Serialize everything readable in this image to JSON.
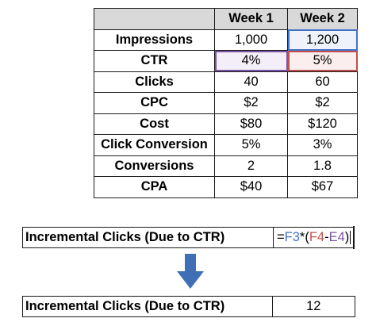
{
  "table": {
    "headers": [
      "",
      "Week 1",
      "Week 2"
    ],
    "rows": [
      {
        "label": "Impressions",
        "week1": "1,000",
        "week2": "1,200"
      },
      {
        "label": "CTR",
        "week1": "4%",
        "week2": "5%"
      },
      {
        "label": "Clicks",
        "week1": "40",
        "week2": "60"
      },
      {
        "label": "CPC",
        "week1": "$2",
        "week2": "$2"
      },
      {
        "label": "Cost",
        "week1": "$80",
        "week2": "$120"
      },
      {
        "label": "Click Conversion",
        "week1": "5%",
        "week2": "3%"
      },
      {
        "label": "Conversions",
        "week1": "2",
        "week2": "1.8"
      },
      {
        "label": "CPA",
        "week1": "$40",
        "week2": "$67"
      }
    ]
  },
  "formula_row": {
    "label": "Incremental Clicks (Due to CTR)",
    "formula": {
      "eq": "=",
      "ref1": "F3",
      "op1": "*(",
      "ref2": "F4",
      "op2": "-",
      "ref3": "E4",
      "close": ")"
    }
  },
  "result_row": {
    "label": "Incremental Clicks (Due to CTR)",
    "value": "12"
  },
  "colors": {
    "header_bg": "#d9d9d9",
    "ref_blue": "#4472c4",
    "ref_red": "#c0504d",
    "ref_purple": "#7b54a8",
    "arrow": "#3f6fb5"
  },
  "icons": {
    "arrow": "arrow-down-icon"
  }
}
